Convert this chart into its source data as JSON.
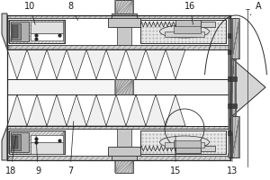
{
  "bg": "#ffffff",
  "lc": "#2a2a2a",
  "hatch_bg": "#d8d8d8",
  "hatch_col": "#555555",
  "white": "#ffffff",
  "light_gray": "#cccccc",
  "mid_gray": "#999999",
  "dark_gray": "#555555",
  "stipple_bg": "#e0e0e0",
  "labels": [
    [
      "10",
      33,
      193,
      40,
      170
    ],
    [
      "8",
      78,
      193,
      88,
      175
    ],
    [
      "16",
      211,
      193,
      215,
      170
    ],
    [
      "A",
      287,
      193,
      278,
      183
    ],
    [
      "18",
      12,
      10,
      18,
      52
    ],
    [
      "9",
      42,
      10,
      40,
      52
    ],
    [
      "7",
      78,
      10,
      82,
      68
    ],
    [
      "15",
      195,
      10,
      195,
      52
    ],
    [
      "13",
      258,
      10,
      258,
      55
    ]
  ]
}
